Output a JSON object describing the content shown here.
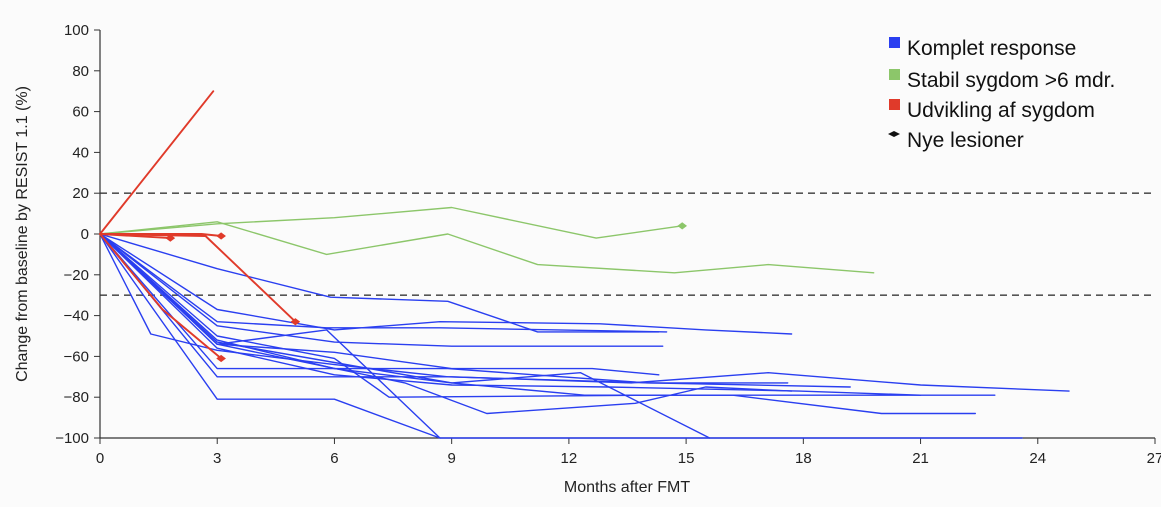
{
  "chart_data": {
    "type": "line",
    "title": "",
    "xlabel": "Months after FMT",
    "ylabel": "Change from baseline by RESIST 1.1 (%)",
    "xlim": [
      0,
      27
    ],
    "ylim": [
      -100,
      100
    ],
    "x_ticks": [
      0,
      3,
      6,
      9,
      12,
      15,
      18,
      21,
      24,
      27
    ],
    "y_ticks": [
      100,
      80,
      60,
      40,
      20,
      0,
      -20,
      -40,
      -60,
      -80,
      -100
    ],
    "grid": false,
    "reference_lines": [
      20,
      -30
    ],
    "legend": {
      "placement": "top-right",
      "entries": [
        {
          "label": "Komplet response",
          "color": "#2a3ff0",
          "marker": "square"
        },
        {
          "label": "Stabil sygdom >6 mdr.",
          "color": "#8cc66a",
          "marker": "square"
        },
        {
          "label": "Udvikling af sygdom",
          "color": "#e03a2a",
          "marker": "square"
        },
        {
          "label": "Nye lesioner",
          "color": "#111111",
          "marker": "diamond"
        }
      ]
    },
    "colors": {
      "complete_response": "#2a3ff0",
      "stable_disease": "#8cc66a",
      "progressive_disease": "#e03a2a"
    },
    "series": [
      {
        "group": "stable_disease",
        "points": [
          [
            0,
            0
          ],
          [
            3,
            5
          ],
          [
            6,
            8
          ],
          [
            9,
            13
          ],
          [
            12.7,
            -2
          ],
          [
            14.9,
            4
          ]
        ],
        "new_lesion_marker_at_end": true
      },
      {
        "group": "stable_disease",
        "points": [
          [
            0,
            0
          ],
          [
            3,
            6
          ],
          [
            5.8,
            -10
          ],
          [
            8.9,
            0
          ],
          [
            11.2,
            -15
          ],
          [
            14.7,
            -19
          ],
          [
            17.1,
            -15
          ],
          [
            19.8,
            -19
          ]
        ]
      },
      {
        "group": "progressive_disease",
        "points": [
          [
            0,
            0
          ],
          [
            2.9,
            70
          ]
        ]
      },
      {
        "group": "progressive_disease",
        "points": [
          [
            0,
            0
          ],
          [
            1.8,
            -2
          ]
        ],
        "new_lesion_marker_at_end": true
      },
      {
        "group": "progressive_disease",
        "points": [
          [
            0,
            0
          ],
          [
            2.6,
            0
          ],
          [
            3.1,
            -1
          ]
        ],
        "new_lesion_marker_at_end": true
      },
      {
        "group": "progressive_disease",
        "points": [
          [
            0,
            0
          ],
          [
            2.7,
            -1
          ],
          [
            5,
            -43
          ]
        ],
        "new_lesion_marker_at_end": true
      },
      {
        "group": "progressive_disease",
        "points": [
          [
            0,
            0
          ],
          [
            1.6,
            -37
          ],
          [
            3.1,
            -61
          ]
        ],
        "new_lesion_marker_at_end": true
      },
      {
        "group": "complete_response",
        "points": [
          [
            0,
            0
          ],
          [
            3,
            -17
          ],
          [
            5.9,
            -31
          ],
          [
            8.9,
            -33
          ],
          [
            11.2,
            -48
          ],
          [
            14.3,
            -48
          ]
        ]
      },
      {
        "group": "complete_response",
        "points": [
          [
            0,
            0
          ],
          [
            3,
            -37
          ],
          [
            6,
            -47
          ],
          [
            8.7,
            -43
          ],
          [
            12.8,
            -44
          ],
          [
            15.5,
            -47
          ],
          [
            17.7,
            -49
          ]
        ]
      },
      {
        "group": "complete_response",
        "points": [
          [
            0,
            0
          ],
          [
            3,
            -45
          ],
          [
            6,
            -53
          ],
          [
            9,
            -55
          ],
          [
            14.4,
            -55
          ]
        ]
      },
      {
        "group": "complete_response",
        "points": [
          [
            0,
            0
          ],
          [
            3,
            -43
          ],
          [
            5.8,
            -46
          ],
          [
            8.7,
            -46
          ],
          [
            14.5,
            -48
          ]
        ]
      },
      {
        "group": "complete_response",
        "points": [
          [
            0,
            0
          ],
          [
            3,
            -54
          ],
          [
            6,
            -58
          ],
          [
            9,
            -66
          ],
          [
            12.6,
            -66
          ],
          [
            14.3,
            -69
          ]
        ]
      },
      {
        "group": "complete_response",
        "points": [
          [
            0,
            0
          ],
          [
            3,
            -66
          ],
          [
            8.9,
            -66
          ],
          [
            14,
            -73
          ],
          [
            17.6,
            -73
          ]
        ]
      },
      {
        "group": "complete_response",
        "points": [
          [
            0,
            0
          ],
          [
            3,
            -70
          ],
          [
            9,
            -70
          ],
          [
            13.6,
            -73
          ],
          [
            17.1,
            -68
          ],
          [
            21,
            -74
          ],
          [
            24.8,
            -77
          ]
        ]
      },
      {
        "group": "complete_response",
        "points": [
          [
            0,
            0
          ],
          [
            3,
            -81
          ],
          [
            6,
            -81
          ],
          [
            8.7,
            -100
          ],
          [
            9,
            -100
          ],
          [
            23.6,
            -100
          ]
        ]
      },
      {
        "group": "complete_response",
        "points": [
          [
            0,
            0
          ],
          [
            1.3,
            -49
          ],
          [
            3,
            -57
          ],
          [
            6,
            -64
          ],
          [
            8.9,
            -70
          ],
          [
            14.1,
            -73
          ],
          [
            19.2,
            -75
          ]
        ]
      },
      {
        "group": "complete_response",
        "points": [
          [
            0,
            0
          ],
          [
            3,
            -53
          ],
          [
            6,
            -63
          ],
          [
            9,
            -73
          ],
          [
            12.3,
            -68
          ],
          [
            15.6,
            -100
          ]
        ]
      },
      {
        "group": "complete_response",
        "points": [
          [
            0,
            0
          ],
          [
            3,
            -54
          ],
          [
            5.8,
            -47
          ],
          [
            8.7,
            -100
          ]
        ]
      },
      {
        "group": "complete_response",
        "points": [
          [
            0,
            0
          ],
          [
            3,
            -50
          ],
          [
            6,
            -61
          ],
          [
            7.4,
            -80
          ],
          [
            14.2,
            -79
          ],
          [
            22.9,
            -79
          ]
        ]
      },
      {
        "group": "complete_response",
        "points": [
          [
            0,
            0
          ],
          [
            3,
            -52
          ],
          [
            6,
            -66
          ],
          [
            9,
            -73
          ],
          [
            12.4,
            -79
          ],
          [
            16.2,
            -79
          ],
          [
            20,
            -88
          ],
          [
            22.4,
            -88
          ]
        ]
      },
      {
        "group": "complete_response",
        "points": [
          [
            0,
            0
          ],
          [
            3,
            -54
          ],
          [
            7.8,
            -73
          ],
          [
            9.9,
            -88
          ],
          [
            13.7,
            -83
          ],
          [
            15.5,
            -75
          ],
          [
            17.7,
            -77
          ]
        ]
      },
      {
        "group": "complete_response",
        "points": [
          [
            0,
            0
          ],
          [
            3,
            -56
          ],
          [
            6,
            -69
          ],
          [
            9,
            -74
          ],
          [
            13,
            -75
          ],
          [
            17.9,
            -77
          ],
          [
            21,
            -79
          ]
        ]
      }
    ]
  }
}
